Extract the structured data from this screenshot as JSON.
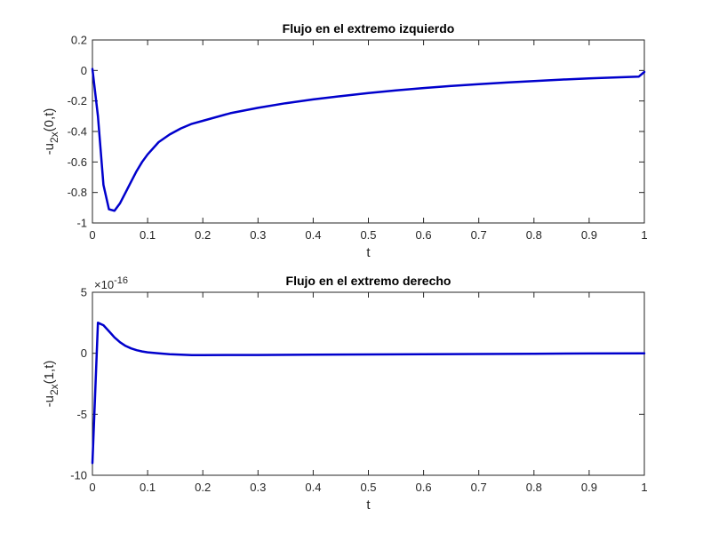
{
  "chart_data": [
    {
      "type": "line",
      "title": "Flujo en el extremo izquierdo",
      "xlabel": "t",
      "ylabel": {
        "prefix": "-u",
        "sub": "2x",
        "suffix": "(0,t)"
      },
      "xlim": [
        0,
        1
      ],
      "ylim": [
        -1,
        0.2
      ],
      "xticks": [
        0,
        0.1,
        0.2,
        0.3,
        0.4,
        0.5,
        0.6,
        0.7,
        0.8,
        0.9,
        1
      ],
      "xticklabels": [
        "0",
        "0.1",
        "0.2",
        "0.3",
        "0.4",
        "0.5",
        "0.6",
        "0.7",
        "0.8",
        "0.9",
        "1"
      ],
      "yticks": [
        -1,
        -0.8,
        -0.6,
        -0.4,
        -0.2,
        0,
        0.2
      ],
      "yticklabels": [
        "-1",
        "-0.8",
        "-0.6",
        "-0.4",
        "-0.2",
        "0",
        "0.2"
      ],
      "grid": false,
      "color": "#0000cc",
      "series": [
        {
          "x": [
            0,
            0.01,
            0.02,
            0.03,
            0.04,
            0.05,
            0.06,
            0.07,
            0.08,
            0.09,
            0.1,
            0.12,
            0.14,
            0.16,
            0.18,
            0.2,
            0.25,
            0.3,
            0.35,
            0.4,
            0.45,
            0.5,
            0.55,
            0.6,
            0.65,
            0.7,
            0.75,
            0.8,
            0.85,
            0.9,
            0.95,
            0.99,
            1.0
          ],
          "y": [
            0.01,
            -0.3,
            -0.75,
            -0.91,
            -0.92,
            -0.87,
            -0.8,
            -0.73,
            -0.66,
            -0.6,
            -0.55,
            -0.47,
            -0.42,
            -0.38,
            -0.35,
            -0.33,
            -0.28,
            -0.245,
            -0.215,
            -0.19,
            -0.168,
            -0.148,
            -0.13,
            -0.115,
            -0.102,
            -0.09,
            -0.079,
            -0.069,
            -0.06,
            -0.052,
            -0.045,
            -0.04,
            -0.01
          ]
        }
      ]
    },
    {
      "type": "line",
      "title": "Flujo en el extremo derecho",
      "xlabel": "t",
      "ylabel": {
        "prefix": "-u",
        "sub": "2x",
        "suffix": "(1,t)"
      },
      "exponent": {
        "base": "×10",
        "power": "-16"
      },
      "xlim": [
        0,
        1
      ],
      "ylim": [
        -10,
        5
      ],
      "xticks": [
        0,
        0.1,
        0.2,
        0.3,
        0.4,
        0.5,
        0.6,
        0.7,
        0.8,
        0.9,
        1
      ],
      "xticklabels": [
        "0",
        "0.1",
        "0.2",
        "0.3",
        "0.4",
        "0.5",
        "0.6",
        "0.7",
        "0.8",
        "0.9",
        "1"
      ],
      "yticks": [
        -10,
        -5,
        0,
        5
      ],
      "yticklabels": [
        "-10",
        "-5",
        "0",
        "5"
      ],
      "grid": false,
      "color": "#0000cc",
      "series": [
        {
          "x": [
            0,
            0.01,
            0.02,
            0.03,
            0.04,
            0.05,
            0.06,
            0.07,
            0.08,
            0.09,
            0.1,
            0.12,
            0.14,
            0.16,
            0.18,
            0.2,
            0.3,
            0.4,
            0.5,
            0.6,
            0.7,
            0.8,
            0.9,
            1.0
          ],
          "y": [
            -9.0,
            2.5,
            2.3,
            1.8,
            1.3,
            0.9,
            0.6,
            0.4,
            0.25,
            0.15,
            0.08,
            0.0,
            -0.08,
            -0.12,
            -0.15,
            -0.15,
            -0.14,
            -0.12,
            -0.1,
            -0.08,
            -0.06,
            -0.04,
            -0.02,
            0.0
          ]
        }
      ]
    }
  ]
}
